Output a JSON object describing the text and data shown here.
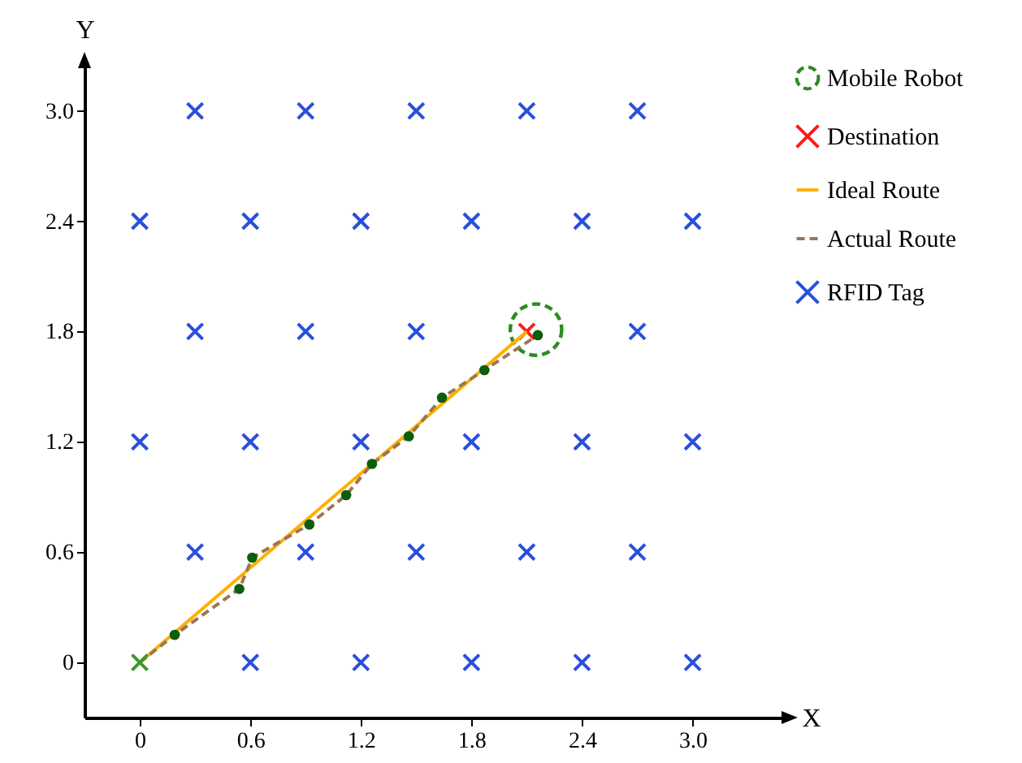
{
  "chart_data": {
    "type": "scatter",
    "xlabel": "X",
    "ylabel": "Y",
    "xlim": [
      -0.3,
      3.5
    ],
    "ylim": [
      -0.3,
      3.25
    ],
    "xticks": [
      0,
      0.6,
      1.2,
      1.8,
      2.4,
      {
        "value": 3,
        "label": "3.0"
      }
    ],
    "yticks": [
      0,
      0.6,
      1.2,
      1.8,
      2.4,
      {
        "value": 3,
        "label": "3.0"
      }
    ],
    "grid": false,
    "legend": "top right",
    "series": [
      {
        "name": "Mobile Robot",
        "marker": "circle",
        "line_style": "dashed",
        "color": "#2e8b22",
        "x": [
          2.15
        ],
        "values": [
          1.81
        ]
      },
      {
        "name": "Destination",
        "marker": "cross",
        "color": "#ff1a1a",
        "x": [
          2.1
        ],
        "values": [
          1.8
        ]
      },
      {
        "name": "Ideal Route",
        "type": "line",
        "line_style": "solid",
        "color": "#ffb000",
        "x": [
          0,
          2.1
        ],
        "values": [
          0,
          1.8
        ]
      },
      {
        "name": "Actual Route",
        "type": "line",
        "line_style": "dashed",
        "color": "#9b7653",
        "x": [
          0,
          0.19,
          0.54,
          0.61,
          0.92,
          1.12,
          1.26,
          1.46,
          1.64,
          1.87,
          2.16
        ],
        "values": [
          0,
          0.15,
          0.4,
          0.57,
          0.75,
          0.91,
          1.08,
          1.23,
          1.44,
          1.59,
          1.78
        ]
      },
      {
        "name": "RFID Tag",
        "marker": "cross",
        "color": "#2a4fdc",
        "x": [
          0.3,
          0.9,
          1.5,
          2.1,
          2.7,
          0,
          0.6,
          1.2,
          1.8,
          2.4,
          3,
          0.3,
          0.9,
          1.5,
          2.7,
          0,
          0.6,
          1.2,
          1.8,
          2.4,
          3,
          0.3,
          0.9,
          1.5,
          2.1,
          2.7,
          0.6,
          1.2,
          1.8,
          2.4,
          3
        ],
        "values": [
          3,
          3,
          3,
          3,
          3,
          2.4,
          2.4,
          2.4,
          2.4,
          2.4,
          2.4,
          1.8,
          1.8,
          1.8,
          1.8,
          1.2,
          1.2,
          1.2,
          1.2,
          1.2,
          1.2,
          0.6,
          0.6,
          0.6,
          0.6,
          0.6,
          0,
          0,
          0,
          0,
          0
        ]
      },
      {
        "marker": "circle",
        "color": "#0b5e0b",
        "x": [
          0.19,
          0.54,
          0.61,
          0.92,
          1.12,
          1.26,
          1.46,
          1.64,
          1.87,
          2.16
        ],
        "values": [
          0.15,
          0.4,
          0.57,
          0.75,
          0.91,
          1.08,
          1.23,
          1.44,
          1.59,
          1.78
        ]
      },
      {
        "marker": "cross",
        "color": "#3a9a2a",
        "x": [
          0
        ],
        "values": [
          0
        ]
      }
    ]
  }
}
